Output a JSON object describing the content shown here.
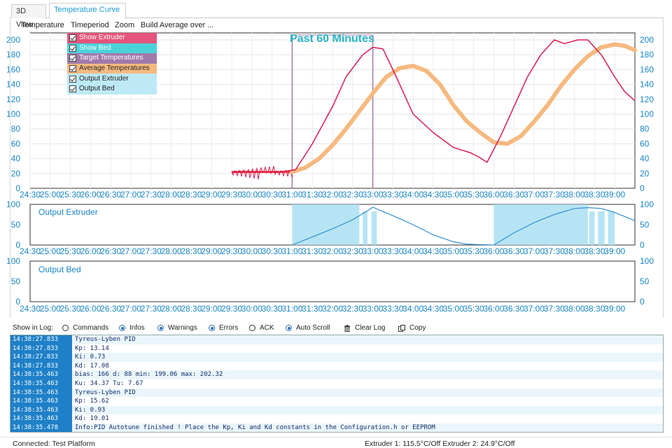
{
  "tabs": [
    {
      "label": "3D View",
      "active": false
    },
    {
      "label": "Temperature Curve",
      "active": true
    }
  ],
  "menu": [
    "Temperature",
    "Timeperiod",
    "Zoom",
    "Build Average over ..."
  ],
  "legend": [
    {
      "label": "Show Extruder",
      "bg": "#e4547c",
      "color": "#ffffff"
    },
    {
      "label": "Show Bed",
      "bg": "#4ad2d9",
      "color": "#ffffff"
    },
    {
      "label": "Target Temperatures",
      "bg": "#a07aab",
      "color": "#ffffff"
    },
    {
      "label": "Average Temperatures",
      "bg": "#f6b97f",
      "color": "#222222"
    },
    {
      "label": "Output Extruder",
      "bg": "#bde9f6",
      "color": "#222222"
    },
    {
      "label": "Output Bed",
      "bg": "#bde9f6",
      "color": "#222222"
    }
  ],
  "main_chart": {
    "title": "Past 60 Minutes",
    "y_ticks": [
      "200",
      "180",
      "160",
      "140",
      "120",
      "100",
      "80",
      "60",
      "40",
      "20",
      "0"
    ],
    "x_ticks": [
      "24:30",
      "25:00",
      "25:30",
      "26:00",
      "26:30",
      "27:00",
      "27:30",
      "28:00",
      "28:30",
      "29:00",
      "29:30",
      "30:00",
      "30:30",
      "31:00",
      "31:30",
      "32:00",
      "32:30",
      "33:00",
      "33:30",
      "34:00",
      "34:30",
      "35:00",
      "35:30",
      "36:00",
      "36:30",
      "37:00",
      "37:30",
      "38:00",
      "38:30",
      "39:00"
    ]
  },
  "output_extruder_chart": {
    "title": "Output Extruder",
    "y_ticks": [
      "100",
      "50",
      "0"
    ]
  },
  "output_bed_chart": {
    "title": "Output Bed",
    "y_ticks": [
      "100",
      "50",
      "0"
    ]
  },
  "chart_data": [
    {
      "type": "line",
      "title": "Past 60 Minutes",
      "xlabel": "",
      "ylabel": "",
      "ylim": [
        0,
        200
      ],
      "x_range": [
        "24:30",
        "39:30"
      ],
      "grid": true,
      "legend_placement": "top-left",
      "colors": {
        "extruder": "#d81b4f",
        "target": "#a07aab",
        "average": "#f6b97f",
        "flat_target": "#ff4a3a"
      },
      "series": [
        {
          "name": "Show Extruder",
          "x": [
            "29:30",
            "30:40",
            "31:05",
            "31:30",
            "32:00",
            "32:20",
            "32:45",
            "33:00",
            "33:15",
            "33:35",
            "34:00",
            "34:30",
            "35:00",
            "35:25",
            "35:38",
            "35:50",
            "36:10",
            "36:30",
            "36:50",
            "37:10",
            "37:30",
            "37:45",
            "38:05",
            "38:20",
            "38:40",
            "39:00",
            "39:15",
            "39:30"
          ],
          "values": [
            22,
            22,
            25,
            60,
            110,
            150,
            180,
            190,
            188,
            150,
            100,
            75,
            55,
            48,
            42,
            35,
            70,
            110,
            150,
            180,
            200,
            195,
            200,
            200,
            180,
            150,
            130,
            118
          ]
        },
        {
          "name": "Average Temperatures",
          "x": [
            "31:00",
            "31:20",
            "31:40",
            "32:00",
            "32:20",
            "32:40",
            "33:00",
            "33:20",
            "33:40",
            "34:00",
            "34:20",
            "34:40",
            "35:00",
            "35:20",
            "35:40",
            "36:00",
            "36:20",
            "36:40",
            "37:00",
            "37:20",
            "37:40",
            "38:00",
            "38:20",
            "38:40",
            "39:00",
            "39:15",
            "39:30"
          ],
          "values": [
            22,
            28,
            40,
            58,
            80,
            104,
            128,
            150,
            162,
            165,
            158,
            140,
            112,
            90,
            75,
            62,
            60,
            70,
            90,
            112,
            138,
            160,
            178,
            190,
            194,
            192,
            186
          ]
        }
      ]
    },
    {
      "type": "area",
      "title": "Output Extruder",
      "ylim": [
        0,
        100
      ],
      "x_range": [
        "24:30",
        "39:30"
      ],
      "series": [
        {
          "name": "Output Extruder",
          "x": [
            "31:00",
            "31:30",
            "32:00",
            "32:30",
            "32:50",
            "33:00",
            "33:30",
            "34:00",
            "34:30",
            "35:00",
            "35:20",
            "36:00",
            "36:30",
            "37:00",
            "37:30",
            "38:00",
            "38:20",
            "38:40",
            "39:00",
            "39:30"
          ],
          "values": [
            0,
            20,
            40,
            62,
            82,
            93,
            72,
            50,
            25,
            8,
            2,
            0,
            30,
            55,
            75,
            90,
            92,
            90,
            80,
            60
          ]
        }
      ]
    },
    {
      "type": "area",
      "title": "Output Bed",
      "ylim": [
        0,
        100
      ],
      "x_range": [
        "24:30",
        "39:30"
      ],
      "series": [
        {
          "name": "Output Bed",
          "x": [],
          "values": []
        }
      ]
    }
  ],
  "log_toolbar": {
    "show_in_log": "Show in Log:",
    "commands": "Commands",
    "infos": "Infos",
    "warnings": "Warnings",
    "errors": "Errors",
    "ack": "ACK",
    "auto_scroll": "Auto Scroll",
    "clear_log": "Clear Log",
    "copy": "Copy"
  },
  "log": [
    {
      "time": "14:38:27.833",
      "msg": "Tyreus-Lyben PID"
    },
    {
      "time": "14:38:27.833",
      "msg": "Kp: 13.14"
    },
    {
      "time": "14:38:27.833",
      "msg": "Ki: 0.73"
    },
    {
      "time": "14:38:27.833",
      "msg": "Kd: 17.08"
    },
    {
      "time": "14:38:35.463",
      "msg": "bias: 166 d: 88 min: 199.06 max: 202.32"
    },
    {
      "time": "14:38:35.463",
      "msg": "Ku: 34.37 Tu: 7.67"
    },
    {
      "time": "14:38:35.463",
      "msg": "Tyreus-Lyben PID"
    },
    {
      "time": "14:38:35.463",
      "msg": "Kp: 15.62"
    },
    {
      "time": "14:38:35.463",
      "msg": "Ki: 0.93"
    },
    {
      "time": "14:38:35.463",
      "msg": "Kd: 19.01"
    },
    {
      "time": "14:38:35.478",
      "msg": "Info:PID Autotune finished ! Place the Kp, Ki and Kd constants in the Configuration.h or EEPROM"
    }
  ],
  "status": {
    "connection": "Connected: Test Platform",
    "temps": "Extruder 1: 115.5°C/Off Extruder 2: 24.9°C/Off"
  }
}
